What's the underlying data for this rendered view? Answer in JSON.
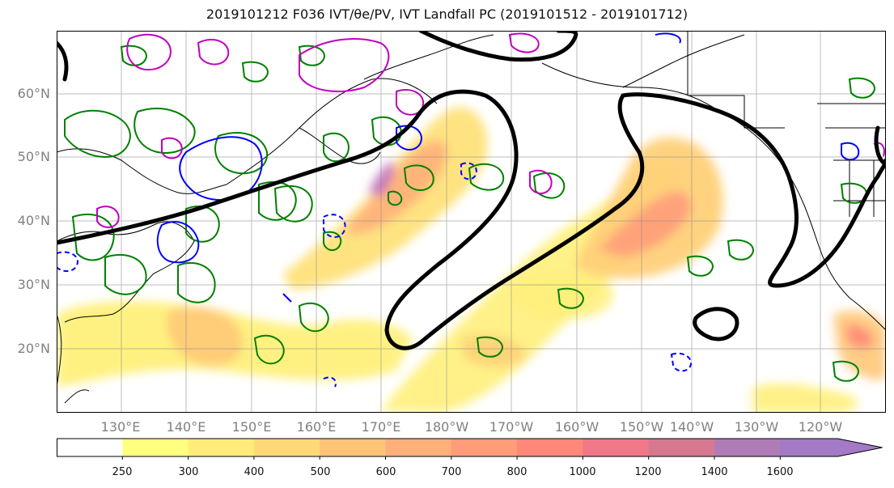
{
  "title": "2019101212 F036 IVT/θe/PV, IVT Landfall PC (2019101512 - 2019101712)",
  "lat_labels": [
    "60°N",
    "50°N",
    "40°N",
    "30°N",
    "20°N"
  ],
  "lon_labels": [
    "130°E",
    "140°E",
    "150°E",
    "160°E",
    "170°E",
    "180°W",
    "170°W",
    "160°W",
    "150°W",
    "140°W",
    "130°W",
    "120°W"
  ],
  "colorbar": {
    "levels": [
      "250",
      "300",
      "400",
      "500",
      "600",
      "700",
      "800",
      "1000",
      "1200",
      "1400",
      "1600"
    ],
    "colors": [
      "#ffffff",
      "#ffff80",
      "#ffec7a",
      "#ffd878",
      "#ffc478",
      "#ffb07a",
      "#ff9c7a",
      "#ff8878",
      "#f07888",
      "#d87890",
      "#b07cb8",
      "#a27ac6"
    ]
  },
  "contour_colors": {
    "theta_e": "#008000",
    "pv_negative": "#0000ff",
    "pv_positive": "#c000c0",
    "landfall": "#000000"
  }
}
